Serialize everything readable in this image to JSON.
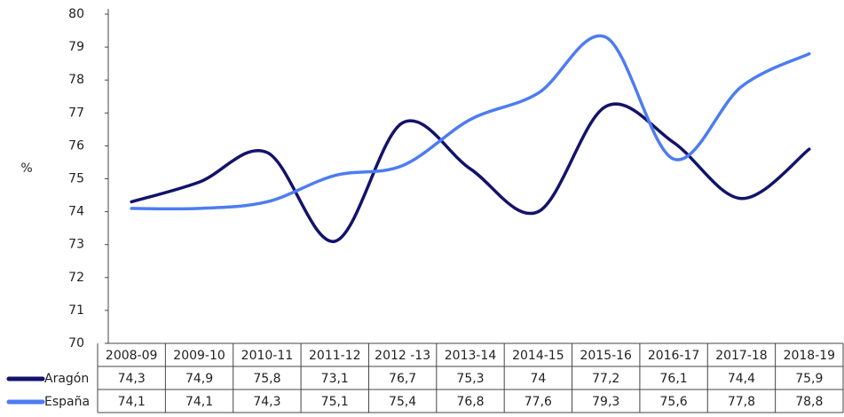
{
  "chart_data": {
    "type": "line",
    "y_label": "%",
    "categories": [
      "2008-09",
      "2009-10",
      "2010-11",
      "2011-12",
      "2012 -13",
      "2013-14",
      "2014-15",
      "2015-16",
      "2016-17",
      "2017-18",
      "2018-19"
    ],
    "series": [
      {
        "name": "Aragón",
        "color": "#13136b",
        "values": [
          74.3,
          74.9,
          75.8,
          73.1,
          76.7,
          75.3,
          74,
          77.2,
          76.1,
          74.4,
          75.9
        ],
        "value_labels": [
          "74,3",
          "74,9",
          "75,8",
          "73,1",
          "76,7",
          "75,3",
          "74",
          "77,2",
          "76,1",
          "74,4",
          "75,9"
        ]
      },
      {
        "name": "España",
        "color": "#4d7cf2",
        "values": [
          74.1,
          74.1,
          74.3,
          75.1,
          75.4,
          76.8,
          77.6,
          79.3,
          75.6,
          77.8,
          78.8
        ],
        "value_labels": [
          "74,1",
          "74,1",
          "74,3",
          "75,1",
          "75,4",
          "76,8",
          "77,6",
          "79,3",
          "75,6",
          "77,8",
          "78,8"
        ]
      }
    ],
    "ylim": [
      70,
      80
    ],
    "yticks": [
      70,
      71,
      72,
      73,
      74,
      75,
      76,
      77,
      78,
      79,
      80
    ],
    "grid": false
  }
}
